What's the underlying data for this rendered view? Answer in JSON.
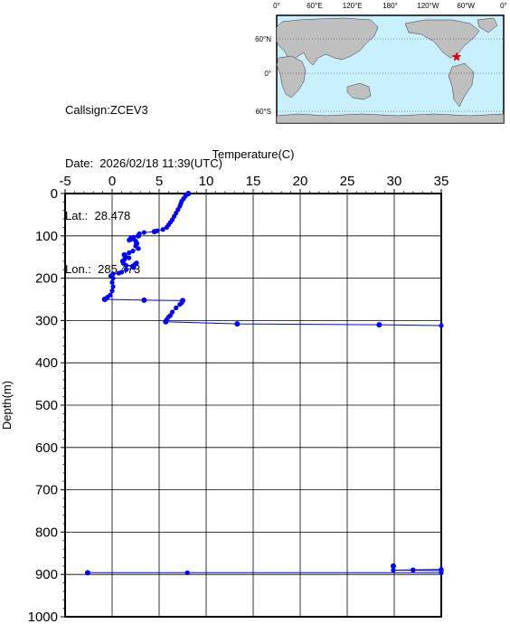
{
  "info": {
    "callsign": "Callsign:ZCEV3",
    "date": "Date:  2026/02/18 11:39(UTC)",
    "lat": "Lat.:  28.478",
    "lon": "Lon.:  285.473"
  },
  "map": {
    "top_labels": [
      "0°",
      "60°E",
      "120°E",
      "180°",
      "120°W",
      "60°W",
      "0°"
    ],
    "left_labels": [
      "60°N",
      "0°",
      "60°S"
    ],
    "ocean_color": "#c8f0ff",
    "land_color": "#bfbfbf",
    "marker_color": "#ff0000",
    "marker": {
      "lon": 285.473,
      "lat": 28.478
    }
  },
  "chart_data": {
    "type": "line",
    "xlabel": "Temperature(C)",
    "ylabel": "Depth(m)",
    "xlim": [
      -5,
      35
    ],
    "ylim": [
      1000,
      0
    ],
    "x_ticks": [
      -5,
      0,
      5,
      10,
      15,
      20,
      25,
      30,
      35
    ],
    "y_ticks": [
      0,
      100,
      200,
      300,
      400,
      500,
      600,
      700,
      800,
      900,
      1000
    ],
    "grid": true,
    "series": [
      {
        "color": "#0000ff",
        "points": [
          [
            8.1,
            0
          ],
          [
            7.9,
            3
          ],
          [
            7.8,
            6
          ],
          [
            7.6,
            12
          ],
          [
            7.4,
            18
          ],
          [
            7.3,
            24
          ],
          [
            7.2,
            30
          ],
          [
            7.0,
            38
          ],
          [
            6.8,
            46
          ],
          [
            6.6,
            54
          ],
          [
            6.4,
            62
          ],
          [
            6.2,
            68
          ],
          [
            6.0,
            74
          ],
          [
            5.8,
            80
          ],
          [
            5.4,
            85
          ],
          [
            4.8,
            88
          ],
          [
            4.5,
            90
          ],
          [
            3.4,
            92
          ],
          [
            2.9,
            95
          ],
          [
            2.8,
            100
          ],
          [
            2.3,
            103
          ],
          [
            2.0,
            104
          ],
          [
            2.2,
            106
          ],
          [
            2.0,
            108
          ],
          [
            1.8,
            110
          ],
          [
            2.5,
            112
          ],
          [
            2.6,
            118
          ],
          [
            2.5,
            124
          ],
          [
            2.8,
            130
          ],
          [
            2.2,
            136
          ],
          [
            1.8,
            140
          ],
          [
            1.3,
            145
          ],
          [
            1.5,
            150
          ],
          [
            1.8,
            152
          ],
          [
            1.3,
            156
          ],
          [
            1.1,
            160
          ],
          [
            1.2,
            165
          ],
          [
            1.5,
            170
          ],
          [
            2.2,
            172
          ],
          [
            2.4,
            168
          ],
          [
            2.6,
            164
          ],
          [
            2.3,
            175
          ],
          [
            1.5,
            180
          ],
          [
            1.0,
            186
          ],
          [
            0.7,
            188
          ],
          [
            0.1,
            190
          ],
          [
            -0.1,
            195
          ],
          [
            0.1,
            200
          ],
          [
            0.0,
            210
          ],
          [
            0.1,
            220
          ],
          [
            0.0,
            230
          ],
          [
            -0.2,
            240
          ],
          [
            -0.5,
            245
          ],
          [
            -0.6,
            248
          ],
          [
            -0.8,
            250
          ],
          [
            3.4,
            252
          ],
          [
            7.5,
            253
          ],
          [
            7.4,
            258
          ],
          [
            7.2,
            262
          ],
          [
            6.8,
            270
          ],
          [
            6.4,
            280
          ],
          [
            6.2,
            288
          ],
          [
            6.0,
            292
          ],
          [
            5.8,
            298
          ],
          [
            5.7,
            303
          ],
          [
            13.3,
            308
          ],
          [
            28.4,
            310
          ],
          [
            35.0,
            312
          ]
        ]
      },
      {
        "color": "#0000ff",
        "points": [
          [
            35.0,
            888
          ],
          [
            32.0,
            889
          ],
          [
            29.9,
            890
          ],
          [
            32.0,
            890
          ],
          [
            35.0,
            891
          ]
        ]
      },
      {
        "color": "#0000ff",
        "points": [
          [
            -2.6,
            896
          ],
          [
            8.0,
            896
          ],
          [
            35.0,
            896
          ]
        ]
      }
    ],
    "markers": [
      [
        8.1,
        0
      ],
      [
        4.5,
        90
      ],
      [
        2.8,
        100
      ],
      [
        2.0,
        108
      ],
      [
        2.6,
        118
      ],
      [
        1.3,
        145
      ],
      [
        2.2,
        172
      ],
      [
        -0.1,
        195
      ],
      [
        -0.8,
        250
      ],
      [
        3.4,
        252
      ],
      [
        7.5,
        253
      ],
      [
        5.7,
        303
      ],
      [
        13.3,
        308
      ],
      [
        28.4,
        310
      ],
      [
        29.9,
        880
      ],
      [
        -2.6,
        896
      ]
    ]
  }
}
